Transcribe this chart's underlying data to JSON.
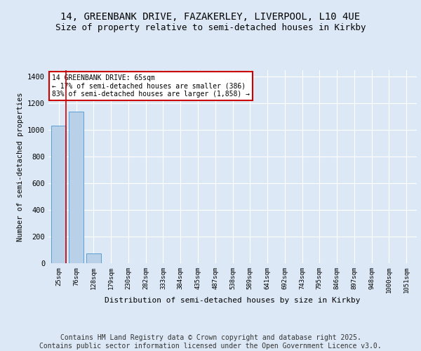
{
  "title": "14, GREENBANK DRIVE, FAZAKERLEY, LIVERPOOL, L10 4UE",
  "subtitle": "Size of property relative to semi-detached houses in Kirkby",
  "xlabel": "Distribution of semi-detached houses by size in Kirkby",
  "ylabel": "Number of semi-detached properties",
  "categories": [
    "25sqm",
    "76sqm",
    "128sqm",
    "179sqm",
    "230sqm",
    "282sqm",
    "333sqm",
    "384sqm",
    "435sqm",
    "487sqm",
    "538sqm",
    "589sqm",
    "641sqm",
    "692sqm",
    "743sqm",
    "795sqm",
    "846sqm",
    "897sqm",
    "948sqm",
    "1000sqm",
    "1051sqm"
  ],
  "values": [
    1035,
    1140,
    75,
    0,
    0,
    0,
    0,
    0,
    0,
    0,
    0,
    0,
    0,
    0,
    0,
    0,
    0,
    0,
    0,
    0,
    0
  ],
  "bar_color": "#b8d0e8",
  "bar_edge_color": "#5a9fd4",
  "property_line_color": "#cc0000",
  "annotation_text": "14 GREENBANK DRIVE: 65sqm\n← 17% of semi-detached houses are smaller (386)\n83% of semi-detached houses are larger (1,858) →",
  "annotation_box_color": "#ffffff",
  "annotation_box_edge_color": "#cc0000",
  "ylim": [
    0,
    1450
  ],
  "yticks": [
    0,
    200,
    400,
    600,
    800,
    1000,
    1200,
    1400
  ],
  "background_color": "#dce8f5",
  "plot_background": "#dce8f5",
  "grid_color": "#ffffff",
  "footer": "Contains HM Land Registry data © Crown copyright and database right 2025.\nContains public sector information licensed under the Open Government Licence v3.0.",
  "title_fontsize": 10,
  "subtitle_fontsize": 9,
  "footer_fontsize": 7
}
